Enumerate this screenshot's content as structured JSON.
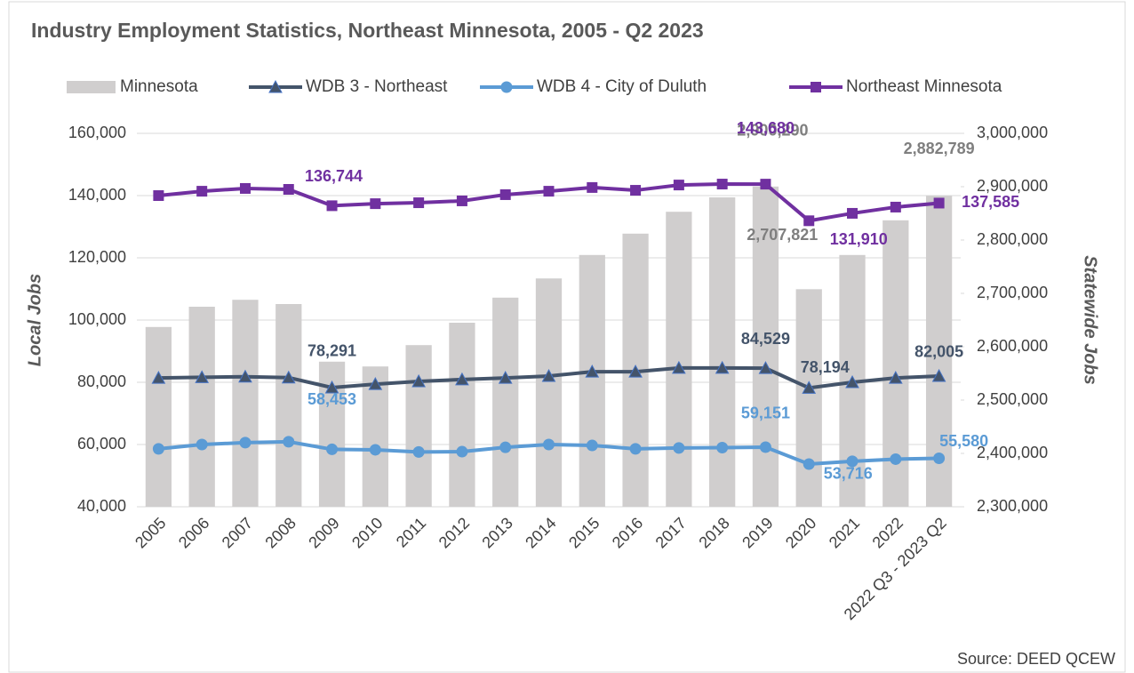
{
  "chart_data": {
    "type": "bar-line",
    "title": "Industry Employment Statistics, Northeast Minnesota, 2005 - Q2 2023",
    "y_label": "Local Jobs",
    "y2_label": "Statewide Jobs",
    "source": "Source: DEED QCEW",
    "categories": [
      "2005",
      "2006",
      "2007",
      "2008",
      "2009",
      "2010",
      "2011",
      "2012",
      "2013",
      "2014",
      "2015",
      "2016",
      "2017",
      "2018",
      "2019",
      "2020",
      "2021",
      "2022",
      "2022 Q3 - 2023 Q2"
    ],
    "ylim": [
      40000,
      160000
    ],
    "yticks": [
      {
        "value": 40000,
        "label": "40,000"
      },
      {
        "value": 60000,
        "label": "60,000"
      },
      {
        "value": 80000,
        "label": "80,000"
      },
      {
        "value": 100000,
        "label": "100,000"
      },
      {
        "value": 120000,
        "label": "120,000"
      },
      {
        "value": 140000,
        "label": "140,000"
      },
      {
        "value": 160000,
        "label": "160,000"
      }
    ],
    "y2lim": [
      2300000,
      3000000
    ],
    "y2ticks": [
      {
        "value": 2300000,
        "label": "2,300,000"
      },
      {
        "value": 2400000,
        "label": "2,400,000"
      },
      {
        "value": 2500000,
        "label": "2,500,000"
      },
      {
        "value": 2600000,
        "label": "2,600,000"
      },
      {
        "value": 2700000,
        "label": "2,700,000"
      },
      {
        "value": 2800000,
        "label": "2,800,000"
      },
      {
        "value": 2900000,
        "label": "2,900,000"
      },
      {
        "value": 3000000,
        "label": "3,000,000"
      }
    ],
    "legend": "top",
    "series": [
      {
        "name": "Minnesota",
        "kind": "bar",
        "axis": "y2",
        "color": "#d0cece",
        "label_color": "#7f7f7f",
        "values": [
          2637000,
          2675000,
          2688000,
          2680000,
          2572000,
          2563000,
          2603000,
          2645000,
          2692000,
          2728000,
          2772000,
          2812000,
          2853000,
          2880000,
          2900290,
          2707821,
          2772000,
          2837000,
          2882789
        ],
        "value_labels": [
          null,
          null,
          null,
          null,
          null,
          null,
          null,
          null,
          null,
          null,
          null,
          null,
          null,
          null,
          "2,900,290",
          "2,707,821",
          null,
          null,
          "2,882,789"
        ]
      },
      {
        "name": "WDB 3 - Northeast",
        "kind": "line",
        "marker": "triangle",
        "color": "#44546a",
        "values": [
          81400,
          81600,
          81800,
          81500,
          78291,
          79400,
          80300,
          80900,
          81400,
          82000,
          83400,
          83400,
          84600,
          84600,
          84529,
          78194,
          80000,
          81400,
          82005
        ],
        "value_labels": [
          null,
          null,
          null,
          null,
          "78,291",
          null,
          null,
          null,
          null,
          null,
          null,
          null,
          null,
          null,
          "84,529",
          "78,194",
          null,
          null,
          "82,005"
        ]
      },
      {
        "name": "WDB 4 - City of Duluth",
        "kind": "line",
        "marker": "circle",
        "color": "#5b9bd5",
        "values": [
          58600,
          60000,
          60600,
          60900,
          58453,
          58300,
          57600,
          57700,
          59100,
          60000,
          59700,
          58600,
          58900,
          59000,
          59151,
          53716,
          54600,
          55300,
          55580
        ],
        "value_labels": [
          null,
          null,
          null,
          null,
          "58,453",
          null,
          null,
          null,
          null,
          null,
          null,
          null,
          null,
          null,
          "59,151",
          "53,716",
          null,
          null,
          "55,580"
        ]
      },
      {
        "name": "Northeast Minnesota",
        "kind": "line",
        "marker": "square",
        "color": "#7030a0",
        "values": [
          140000,
          141400,
          142300,
          142000,
          136744,
          137400,
          137700,
          138300,
          140300,
          141400,
          142600,
          141700,
          143400,
          143700,
          143680,
          131910,
          134300,
          136300,
          137585
        ],
        "value_labels": [
          null,
          null,
          null,
          null,
          "136,744",
          null,
          null,
          null,
          null,
          null,
          null,
          null,
          null,
          null,
          "143,680",
          "131,910",
          null,
          null,
          "137,585"
        ]
      }
    ]
  }
}
